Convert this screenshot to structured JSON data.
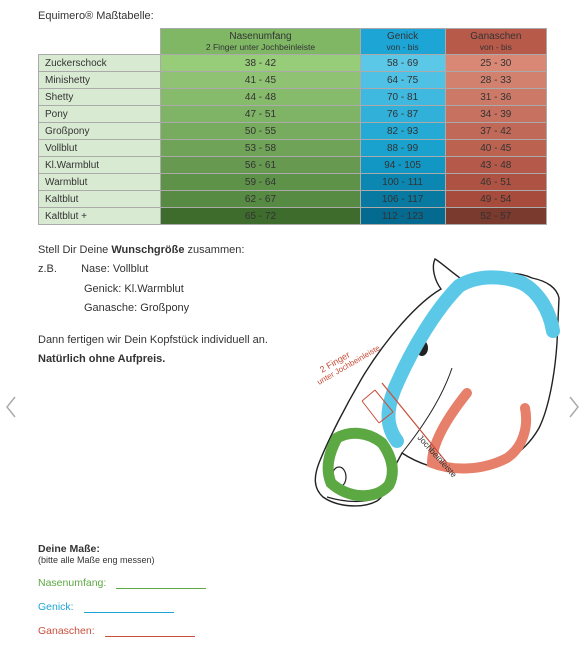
{
  "title": "Equimero® Maßtabelle:",
  "table": {
    "headers": [
      {
        "top": "Nasenumfang",
        "sub": "2 Finger unter Jochbeinleiste",
        "bg": "#7fb765"
      },
      {
        "top": "Genick",
        "sub": "von - bis",
        "bg": "#1da5d6"
      },
      {
        "top": "Ganaschen",
        "sub": "von - bis",
        "bg": "#b85a4a"
      }
    ],
    "rows": [
      {
        "label": "Zuckerschock",
        "nase": "38 - 42",
        "genick": "58 - 69",
        "ganasche": "25 - 30",
        "gBg": "#97cc79",
        "bBg": "#5cc8e8",
        "rBg": "#d98876"
      },
      {
        "label": "Minishetty",
        "nase": "41 - 45",
        "genick": "64 - 75",
        "ganasche": "28 - 33",
        "gBg": "#8fc373",
        "bBg": "#4ec1e4",
        "rBg": "#d3816f"
      },
      {
        "label": "Shetty",
        "nase": "44 - 48",
        "genick": "70 - 81",
        "ganasche": "31 - 36",
        "gBg": "#87bb6c",
        "bBg": "#3fb9df",
        "rBg": "#cd7967"
      },
      {
        "label": "Pony",
        "nase": "47 - 51",
        "genick": "76 - 87",
        "ganasche": "34 - 39",
        "gBg": "#7fb365",
        "bBg": "#31b1da",
        "rBg": "#c77160"
      },
      {
        "label": "Großpony",
        "nase": "50 - 55",
        "genick": "82 - 93",
        "ganasche": "37 - 42",
        "gBg": "#77ab5e",
        "bBg": "#24aad5",
        "rBg": "#c16958"
      },
      {
        "label": "Vollblut",
        "nase": "53 - 58",
        "genick": "88 - 99",
        "ganasche": "40 - 45",
        "gBg": "#6fa357",
        "bBg": "#1aa2cf",
        "rBg": "#bb6251"
      },
      {
        "label": "Kl.Warmblut",
        "nase": "56 - 61",
        "genick": "94 - 105",
        "ganasche": "43 - 48",
        "gBg": "#679a50",
        "bBg": "#1296c3",
        "rBg": "#b55a4a"
      },
      {
        "label": "Warmblut",
        "nase": "59 - 64",
        "genick": "100 - 111",
        "ganasche": "46 - 51",
        "gBg": "#5f9249",
        "bBg": "#0c87b2",
        "rBg": "#ae5343"
      },
      {
        "label": "Kaltblut",
        "nase": "62 - 67",
        "genick": "106 - 117",
        "ganasche": "49 - 54",
        "gBg": "#578a43",
        "bBg": "#0879a1",
        "rBg": "#a74c3c"
      },
      {
        "label": "Kaltblut +",
        "nase": "65 - 72",
        "genick": "112 - 123",
        "ganasche": "52 - 57",
        "gBg": "#3e6c2d",
        "bBg": "#056a8f",
        "rBg": "#7a3a2e"
      }
    ],
    "rowLabelBg": "#d9ead3"
  },
  "midText": {
    "line1_pre": "Stell Dir Deine ",
    "line1_strong": "Wunschgröße",
    "line1_post": " zusammen:",
    "eg_label": "z.B.",
    "eg_rows": [
      {
        "k": "Nase:",
        "v": "Vollblut"
      },
      {
        "k": "Genick:",
        "v": "Kl.Warmblut"
      },
      {
        "k": "Ganasche:",
        "v": "Großpony"
      }
    ],
    "line2": "Dann fertigen wir Dein Kopfstück individuell an.",
    "line3_strong": "Natürlich ohne Aufpreis."
  },
  "diagram": {
    "note_main": "2 Finger",
    "note_sub": "unter Jochbeinleiste",
    "label_joch": "Jochbeinleiste",
    "colors": {
      "nase": "#5ca843",
      "genick": "#5cc8e8",
      "ganasche": "#e6806b",
      "outline": "#222"
    }
  },
  "measure": {
    "header": "Deine Maße:",
    "note": "(bitte alle Maße eng messen)",
    "lines": [
      {
        "label": "Nasenumfang:",
        "cls": "green"
      },
      {
        "label": "Genick:",
        "cls": "blue"
      },
      {
        "label": "Ganaschen:",
        "cls": "red"
      }
    ]
  }
}
